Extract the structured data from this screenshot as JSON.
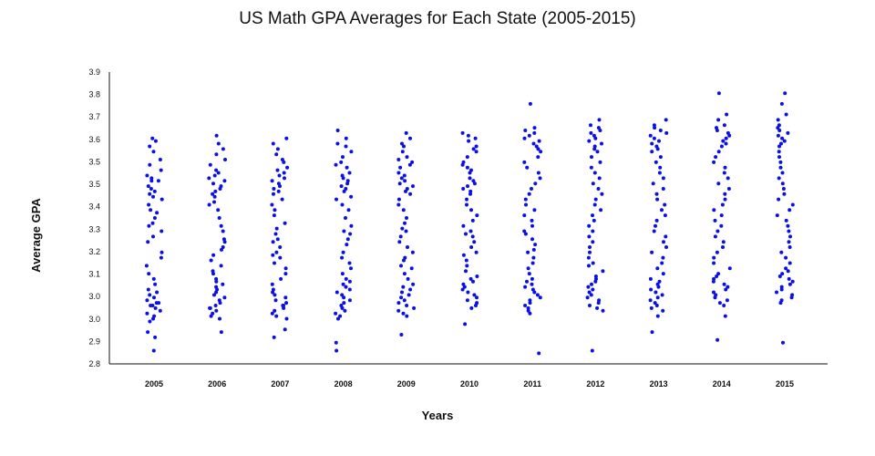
{
  "chart_data": {
    "type": "scatter",
    "title": "US Math GPA Averages for Each State (2005-2015)",
    "xlabel": "Years",
    "ylabel": "Average GPA",
    "categories": [
      "2005",
      "2006",
      "2007",
      "2008",
      "2009",
      "2010",
      "2011",
      "2012",
      "2013",
      "2014",
      "2015"
    ],
    "y_tick_labels": [
      "2.8",
      "2.9",
      "3.0",
      "3.0",
      "3.1",
      "3.2",
      "3.3",
      "3.4",
      "3.5",
      "3.5",
      "3.6",
      "3.7",
      "3.8",
      "3.9"
    ],
    "ylim": [
      2.8,
      3.9
    ],
    "point_color": "#0a10e6",
    "grid": false,
    "series": [
      {
        "values": [
          2.85,
          2.9,
          2.92,
          2.96,
          2.97,
          2.98,
          2.99,
          3.0,
          3.01,
          3.02,
          3.02,
          3.03,
          3.03,
          3.04,
          3.05,
          3.06,
          3.07,
          3.08,
          3.1,
          3.12,
          3.14,
          3.17,
          3.2,
          3.22,
          3.26,
          3.28,
          3.3,
          3.32,
          3.33,
          3.35,
          3.37,
          3.38,
          3.4,
          3.42,
          3.43,
          3.44,
          3.45,
          3.46,
          3.47,
          3.49,
          3.49,
          3.5,
          3.51,
          3.53,
          3.55,
          3.57,
          3.6,
          3.62,
          3.64,
          3.65
        ]
      },
      {
        "values": [
          2.92,
          2.97,
          2.98,
          2.99,
          3.0,
          3.01,
          3.01,
          3.02,
          3.03,
          3.04,
          3.05,
          3.06,
          3.07,
          3.08,
          3.09,
          3.1,
          3.11,
          3.12,
          3.14,
          3.15,
          3.17,
          3.19,
          3.21,
          3.23,
          3.24,
          3.26,
          3.27,
          3.3,
          3.32,
          3.35,
          3.38,
          3.4,
          3.41,
          3.43,
          3.44,
          3.45,
          3.46,
          3.47,
          3.48,
          3.49,
          3.5,
          3.51,
          3.52,
          3.53,
          3.55,
          3.57,
          3.59,
          3.61,
          3.63,
          3.66
        ]
      },
      {
        "values": [
          2.9,
          2.93,
          2.97,
          2.98,
          2.99,
          3.0,
          3.01,
          3.02,
          3.02,
          3.03,
          3.04,
          3.05,
          3.06,
          3.07,
          3.08,
          3.1,
          3.12,
          3.14,
          3.16,
          3.18,
          3.2,
          3.21,
          3.22,
          3.24,
          3.26,
          3.27,
          3.29,
          3.31,
          3.33,
          3.36,
          3.38,
          3.4,
          3.42,
          3.44,
          3.45,
          3.46,
          3.47,
          3.48,
          3.49,
          3.5,
          3.51,
          3.52,
          3.53,
          3.54,
          3.56,
          3.57,
          3.59,
          3.61,
          3.63,
          3.65
        ]
      },
      {
        "values": [
          2.85,
          2.88,
          2.97,
          2.98,
          2.99,
          3.0,
          3.01,
          3.02,
          3.03,
          3.04,
          3.05,
          3.06,
          3.07,
          3.08,
          3.09,
          3.1,
          3.11,
          3.12,
          3.14,
          3.16,
          3.18,
          3.2,
          3.22,
          3.25,
          3.27,
          3.29,
          3.3,
          3.32,
          3.35,
          3.38,
          3.4,
          3.42,
          3.43,
          3.45,
          3.46,
          3.47,
          3.48,
          3.49,
          3.5,
          3.51,
          3.52,
          3.54,
          3.55,
          3.56,
          3.58,
          3.6,
          3.62,
          3.63,
          3.65,
          3.68
        ]
      },
      {
        "values": [
          2.91,
          2.98,
          2.99,
          3.0,
          3.01,
          3.02,
          3.03,
          3.04,
          3.05,
          3.06,
          3.07,
          3.08,
          3.09,
          3.1,
          3.12,
          3.14,
          3.16,
          3.17,
          3.19,
          3.2,
          3.22,
          3.24,
          3.26,
          3.28,
          3.3,
          3.31,
          3.33,
          3.35,
          3.38,
          3.4,
          3.42,
          3.44,
          3.45,
          3.46,
          3.47,
          3.48,
          3.49,
          3.5,
          3.51,
          3.52,
          3.54,
          3.55,
          3.56,
          3.57,
          3.58,
          3.6,
          3.62,
          3.63,
          3.65,
          3.67
        ]
      },
      {
        "values": [
          2.95,
          3.01,
          3.02,
          3.03,
          3.04,
          3.05,
          3.06,
          3.07,
          3.08,
          3.09,
          3.1,
          3.11,
          3.12,
          3.13,
          3.15,
          3.17,
          3.19,
          3.21,
          3.22,
          3.24,
          3.26,
          3.28,
          3.29,
          3.3,
          3.32,
          3.34,
          3.36,
          3.38,
          3.4,
          3.42,
          3.44,
          3.45,
          3.46,
          3.47,
          3.48,
          3.49,
          3.5,
          3.52,
          3.53,
          3.54,
          3.55,
          3.56,
          3.58,
          3.6,
          3.61,
          3.62,
          3.64,
          3.65,
          3.66,
          3.67
        ]
      },
      {
        "values": [
          2.84,
          2.99,
          3.0,
          3.01,
          3.02,
          3.03,
          3.04,
          3.05,
          3.06,
          3.07,
          3.08,
          3.09,
          3.1,
          3.11,
          3.12,
          3.14,
          3.16,
          3.18,
          3.2,
          3.22,
          3.23,
          3.25,
          3.27,
          3.29,
          3.3,
          3.32,
          3.34,
          3.36,
          3.38,
          3.4,
          3.42,
          3.44,
          3.46,
          3.48,
          3.5,
          3.52,
          3.54,
          3.56,
          3.58,
          3.6,
          3.61,
          3.62,
          3.63,
          3.64,
          3.65,
          3.66,
          3.67,
          3.68,
          3.69,
          3.78
        ]
      },
      {
        "values": [
          2.85,
          3.0,
          3.01,
          3.02,
          3.03,
          3.04,
          3.05,
          3.06,
          3.07,
          3.08,
          3.09,
          3.1,
          3.11,
          3.12,
          3.13,
          3.15,
          3.17,
          3.18,
          3.2,
          3.22,
          3.24,
          3.26,
          3.28,
          3.3,
          3.32,
          3.34,
          3.36,
          3.38,
          3.4,
          3.42,
          3.44,
          3.46,
          3.48,
          3.5,
          3.52,
          3.54,
          3.56,
          3.58,
          3.6,
          3.61,
          3.62,
          3.63,
          3.64,
          3.65,
          3.66,
          3.67,
          3.68,
          3.69,
          3.7,
          3.72
        ]
      },
      {
        "values": [
          2.92,
          2.98,
          3.0,
          3.01,
          3.02,
          3.03,
          3.04,
          3.05,
          3.06,
          3.07,
          3.08,
          3.09,
          3.1,
          3.11,
          3.12,
          3.14,
          3.16,
          3.18,
          3.2,
          3.22,
          3.24,
          3.26,
          3.28,
          3.3,
          3.32,
          3.34,
          3.36,
          3.38,
          3.4,
          3.42,
          3.44,
          3.46,
          3.48,
          3.5,
          3.52,
          3.54,
          3.56,
          3.58,
          3.6,
          3.61,
          3.62,
          3.63,
          3.64,
          3.65,
          3.66,
          3.67,
          3.68,
          3.69,
          3.7,
          3.72
        ]
      },
      {
        "values": [
          2.89,
          2.98,
          3.02,
          3.03,
          3.04,
          3.05,
          3.06,
          3.07,
          3.08,
          3.09,
          3.1,
          3.11,
          3.12,
          3.13,
          3.14,
          3.16,
          3.18,
          3.2,
          3.22,
          3.24,
          3.26,
          3.28,
          3.3,
          3.32,
          3.34,
          3.36,
          3.38,
          3.4,
          3.42,
          3.44,
          3.46,
          3.48,
          3.5,
          3.52,
          3.54,
          3.56,
          3.58,
          3.6,
          3.62,
          3.63,
          3.64,
          3.65,
          3.66,
          3.67,
          3.68,
          3.69,
          3.7,
          3.72,
          3.74,
          3.82
        ]
      },
      {
        "values": [
          2.88,
          3.03,
          3.04,
          3.05,
          3.06,
          3.07,
          3.08,
          3.09,
          3.1,
          3.11,
          3.12,
          3.13,
          3.14,
          3.15,
          3.16,
          3.18,
          3.2,
          3.22,
          3.24,
          3.26,
          3.28,
          3.3,
          3.32,
          3.34,
          3.36,
          3.38,
          3.4,
          3.42,
          3.44,
          3.46,
          3.48,
          3.5,
          3.52,
          3.54,
          3.56,
          3.58,
          3.6,
          3.62,
          3.63,
          3.64,
          3.65,
          3.66,
          3.67,
          3.68,
          3.69,
          3.7,
          3.72,
          3.74,
          3.78,
          3.82
        ]
      }
    ]
  }
}
